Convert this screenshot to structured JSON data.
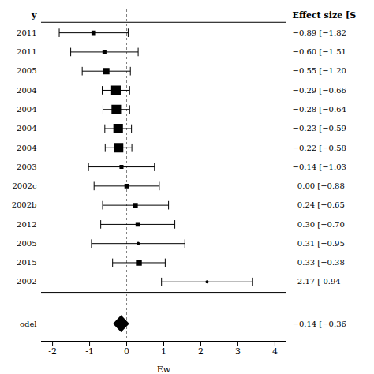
{
  "chart_data": {
    "type": "forest",
    "xlabel": "Ew",
    "column_titles": [
      "y",
      "Effect size [S"
    ],
    "categories": [
      "2011",
      "2011",
      "2005",
      "2004",
      "2004",
      "2004",
      "2004",
      "2003",
      "2002c",
      "2002b",
      "2012",
      "2005",
      "2015",
      "2002"
    ],
    "values": [
      -0.89,
      -0.6,
      -0.55,
      -0.29,
      -0.28,
      -0.23,
      -0.22,
      -0.14,
      0.0,
      0.24,
      0.3,
      0.31,
      0.33,
      2.17
    ],
    "ci_low": [
      -1.82,
      -1.51,
      -1.2,
      -0.66,
      -0.64,
      -0.59,
      -0.58,
      -1.03,
      -0.88,
      -0.65,
      -0.7,
      -0.95,
      -0.38,
      0.94
    ],
    "ci_high": [
      0.04,
      0.31,
      0.1,
      0.08,
      0.08,
      0.13,
      0.14,
      0.75,
      0.88,
      1.13,
      1.3,
      1.57,
      1.04,
      3.4
    ],
    "sizes": [
      3.5,
      3.0,
      5.5,
      9.0,
      9.0,
      9.0,
      9.0,
      3.0,
      3.5,
      3.5,
      3.5,
      2.0,
      5.0,
      2.0
    ],
    "markers": [
      "square",
      "square",
      "square",
      "square",
      "square",
      "square",
      "square",
      "square",
      "square",
      "square",
      "square",
      "circle",
      "square",
      "circle"
    ],
    "value_labels": [
      "−0.89 [−1.82",
      "−0.60 [−1.51",
      "−0.55 [−1.20",
      "−0.29 [−0.66",
      "−0.28 [−0.64",
      "−0.23 [−0.59",
      "−0.22 [−0.58",
      "−0.14 [−1.03",
      "  0.00 [−0.88",
      "  0.24 [−0.65",
      "  0.30 [−0.70",
      "  0.31 [−0.95",
      "  0.33 [−0.38",
      "  2.17 [ 0.94"
    ],
    "model": {
      "label": "odel",
      "value": -0.14,
      "ci_low": -0.36,
      "ci_high": 0.08,
      "value_label": "−0.14 [−0.36"
    },
    "reference_x": 0,
    "xlim": [
      -2.3,
      4.3
    ],
    "xticks": [
      -2,
      -1,
      0,
      1,
      2,
      3,
      4
    ],
    "color": "#000000"
  }
}
